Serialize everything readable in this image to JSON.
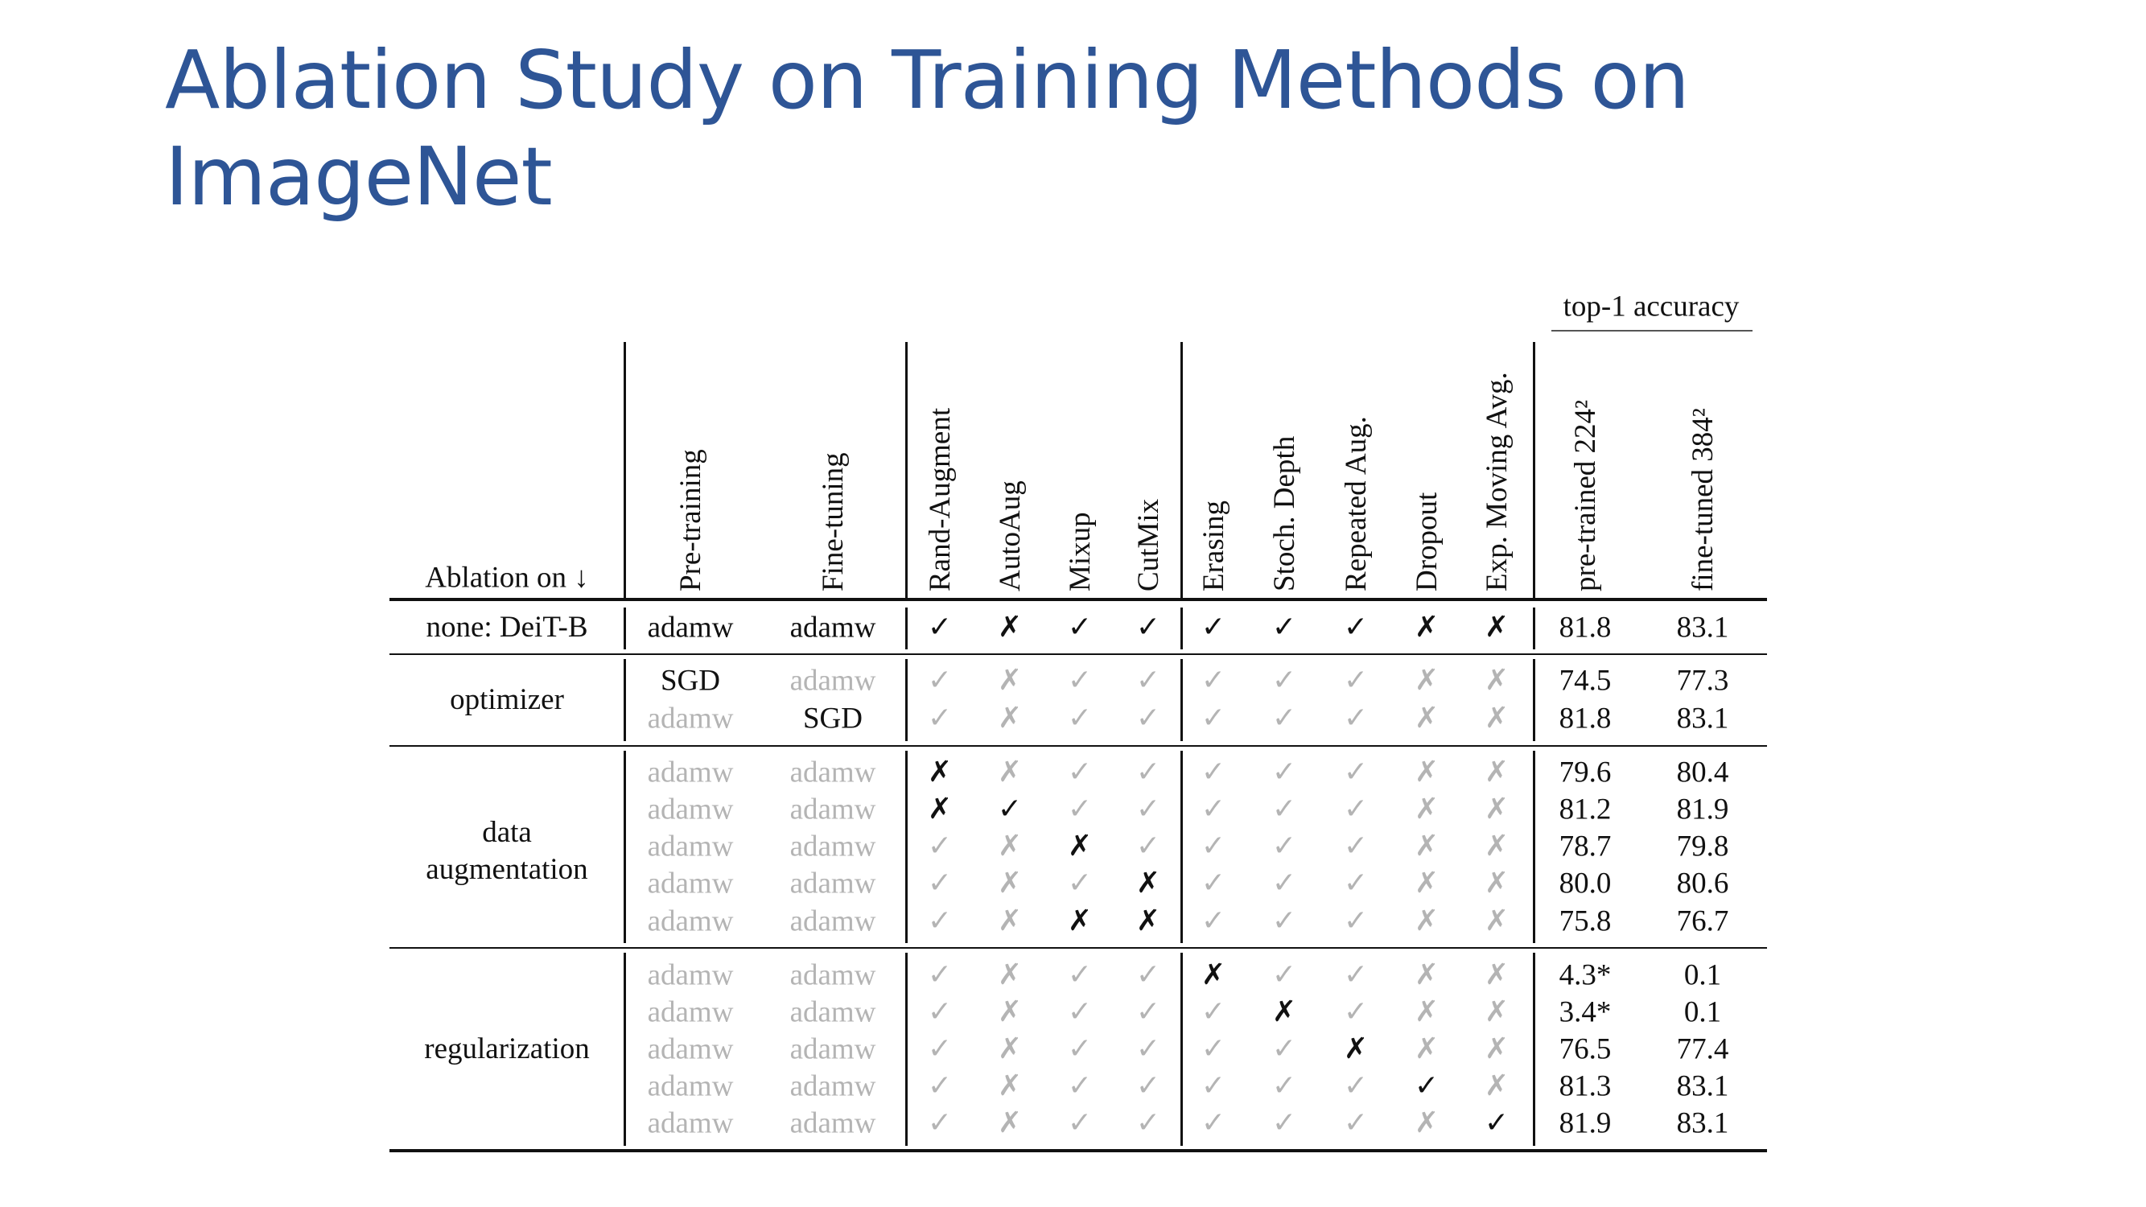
{
  "title": {
    "line1": "Ablation Study on Training Methods on",
    "line2": "ImageNet"
  },
  "table": {
    "accuracy_group_label": "top-1 accuracy",
    "corner_label": "Ablation on ↓",
    "columns": [
      "Pre-training",
      "Fine-tuning",
      "Rand-Augment",
      "AutoAug",
      "Mixup",
      "CutMix",
      "Erasing",
      "Stoch. Depth",
      "Repeated Aug.",
      "Dropout",
      "Exp. Moving Avg.",
      "pre-trained 224²",
      "fine-tuned 384²"
    ],
    "groups": [
      {
        "label": "none: DeiT-B",
        "rows": [
          0
        ]
      },
      {
        "label": "optimizer",
        "rows": [
          1,
          2
        ]
      },
      {
        "label": "data augmentation",
        "rows": [
          3,
          4,
          5,
          6,
          7
        ]
      },
      {
        "label": "regularization",
        "rows": [
          8,
          9,
          10,
          11,
          12
        ]
      }
    ],
    "rows": [
      {
        "pre": "adamw",
        "fine": "adamw",
        "marks": "✓✗✓✓✓✓✓✗✗",
        "changed": "PFRAMCESTDX",
        "acc1": "81.8",
        "acc2": "83.1"
      },
      {
        "pre": "SGD",
        "fine": "adamw",
        "marks": "✓✗✓✓✓✓✓✗✗",
        "changed": "P",
        "acc1": "74.5",
        "acc2": "77.3"
      },
      {
        "pre": "adamw",
        "fine": "SGD",
        "marks": "✓✗✓✓✓✓✓✗✗",
        "changed": "F",
        "acc1": "81.8",
        "acc2": "83.1"
      },
      {
        "pre": "adamw",
        "fine": "adamw",
        "marks": "✗✗✓✓✓✓✓✗✗",
        "changed": "R",
        "acc1": "79.6",
        "acc2": "80.4"
      },
      {
        "pre": "adamw",
        "fine": "adamw",
        "marks": "✗✓✓✓✓✓✓✗✗",
        "changed": "RA",
        "acc1": "81.2",
        "acc2": "81.9"
      },
      {
        "pre": "adamw",
        "fine": "adamw",
        "marks": "✓✗✗✓✓✓✓✗✗",
        "changed": "M",
        "acc1": "78.7",
        "acc2": "79.8"
      },
      {
        "pre": "adamw",
        "fine": "adamw",
        "marks": "✓✗✓✗✓✓✓✗✗",
        "changed": "C",
        "acc1": "80.0",
        "acc2": "80.6"
      },
      {
        "pre": "adamw",
        "fine": "adamw",
        "marks": "✓✗✗✗✓✓✓✗✗",
        "changed": "MC",
        "acc1": "75.8",
        "acc2": "76.7"
      },
      {
        "pre": "adamw",
        "fine": "adamw",
        "marks": "✓✗✓✓✗✓✓✗✗",
        "changed": "E",
        "acc1": "4.3*",
        "acc2": "0.1"
      },
      {
        "pre": "adamw",
        "fine": "adamw",
        "marks": "✓✗✓✓✓✗✓✗✗",
        "changed": "S",
        "acc1": "3.4*",
        "acc2": "0.1"
      },
      {
        "pre": "adamw",
        "fine": "adamw",
        "marks": "✓✗✓✓✓✓✗✗✗",
        "changed": "T",
        "acc1": "76.5",
        "acc2": "77.4"
      },
      {
        "pre": "adamw",
        "fine": "adamw",
        "marks": "✓✗✓✓✓✓✓✓✗",
        "changed": "D",
        "acc1": "81.3",
        "acc2": "83.1"
      },
      {
        "pre": "adamw",
        "fine": "adamw",
        "marks": "✓✗✓✓✓✓✓✗✓",
        "changed": "X",
        "acc1": "81.9",
        "acc2": "83.1"
      }
    ]
  }
}
